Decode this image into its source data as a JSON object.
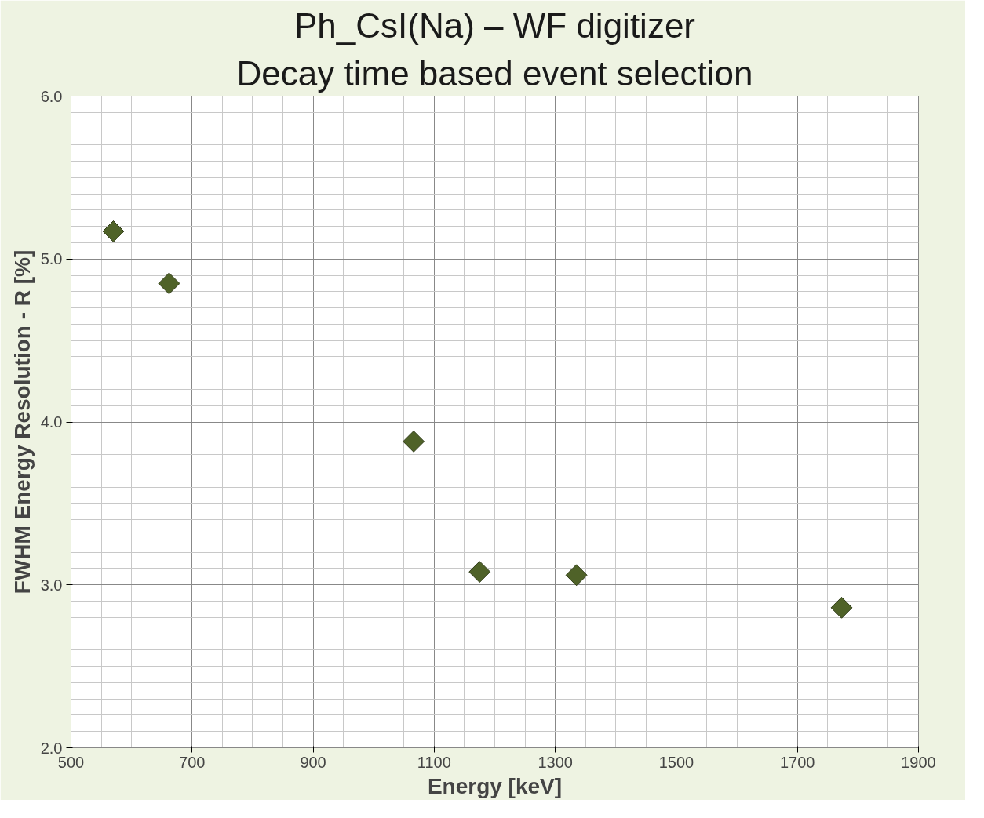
{
  "chart_data": {
    "type": "scatter",
    "title": "Ph_CsI(Na) – WF digitizer",
    "subtitle": "Decay time based event selection",
    "xlabel": "Energy [keV]",
    "ylabel": "FWHM Energy Resolution - R [%]",
    "x": [
      570,
      662,
      1066,
      1175,
      1335,
      1773
    ],
    "series": [
      {
        "color": "#4f6228",
        "values": [
          5.17,
          4.85,
          3.88,
          3.08,
          3.06,
          2.86
        ]
      }
    ],
    "xlim": [
      500,
      1900
    ],
    "xticks": [
      500,
      700,
      900,
      1100,
      1300,
      1500,
      1700,
      1900
    ],
    "ylim": [
      2.0,
      6.0
    ],
    "yticks": [
      {
        "value": 2,
        "label": "2.0"
      },
      {
        "value": 3,
        "label": "3.0"
      },
      {
        "value": 4,
        "label": "4.0"
      },
      {
        "value": 5,
        "label": "5.0"
      },
      {
        "value": 6,
        "label": "6.0"
      }
    ],
    "grid": true,
    "marker": "diamond"
  }
}
